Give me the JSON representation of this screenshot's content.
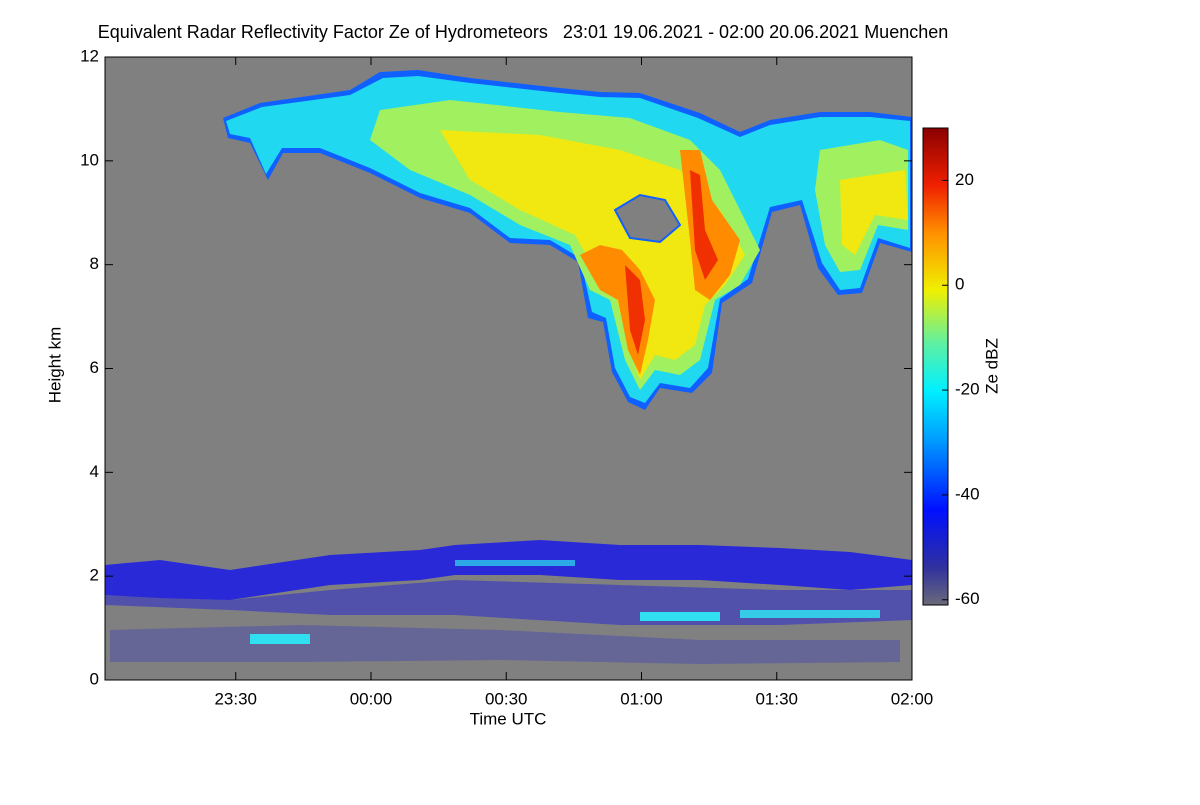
{
  "chart_data": {
    "type": "heatmap",
    "title": "Equivalent Radar Reflectivity Factor Ze of Hydrometeors   23:01 19.06.2021 - 02:00 20.06.2021 Muenchen",
    "x_label": "Time UTC",
    "y_label": "Height km",
    "colorbar_label": "Ze dBZ",
    "xlim": [
      -59,
      120
    ],
    "xticks": [
      {
        "value": -30,
        "label": "23:30"
      },
      {
        "value": 0,
        "label": "00:00"
      },
      {
        "value": 30,
        "label": "00:30"
      },
      {
        "value": 60,
        "label": "01:00"
      },
      {
        "value": 90,
        "label": "01:30"
      },
      {
        "value": 120,
        "label": "02:00"
      }
    ],
    "ylim": [
      0,
      12
    ],
    "yticks": [
      0,
      2,
      4,
      6,
      8,
      10,
      12
    ],
    "zlim": [
      -61,
      30
    ],
    "zticks": [
      -60,
      -40,
      -20,
      0,
      20
    ]
  }
}
